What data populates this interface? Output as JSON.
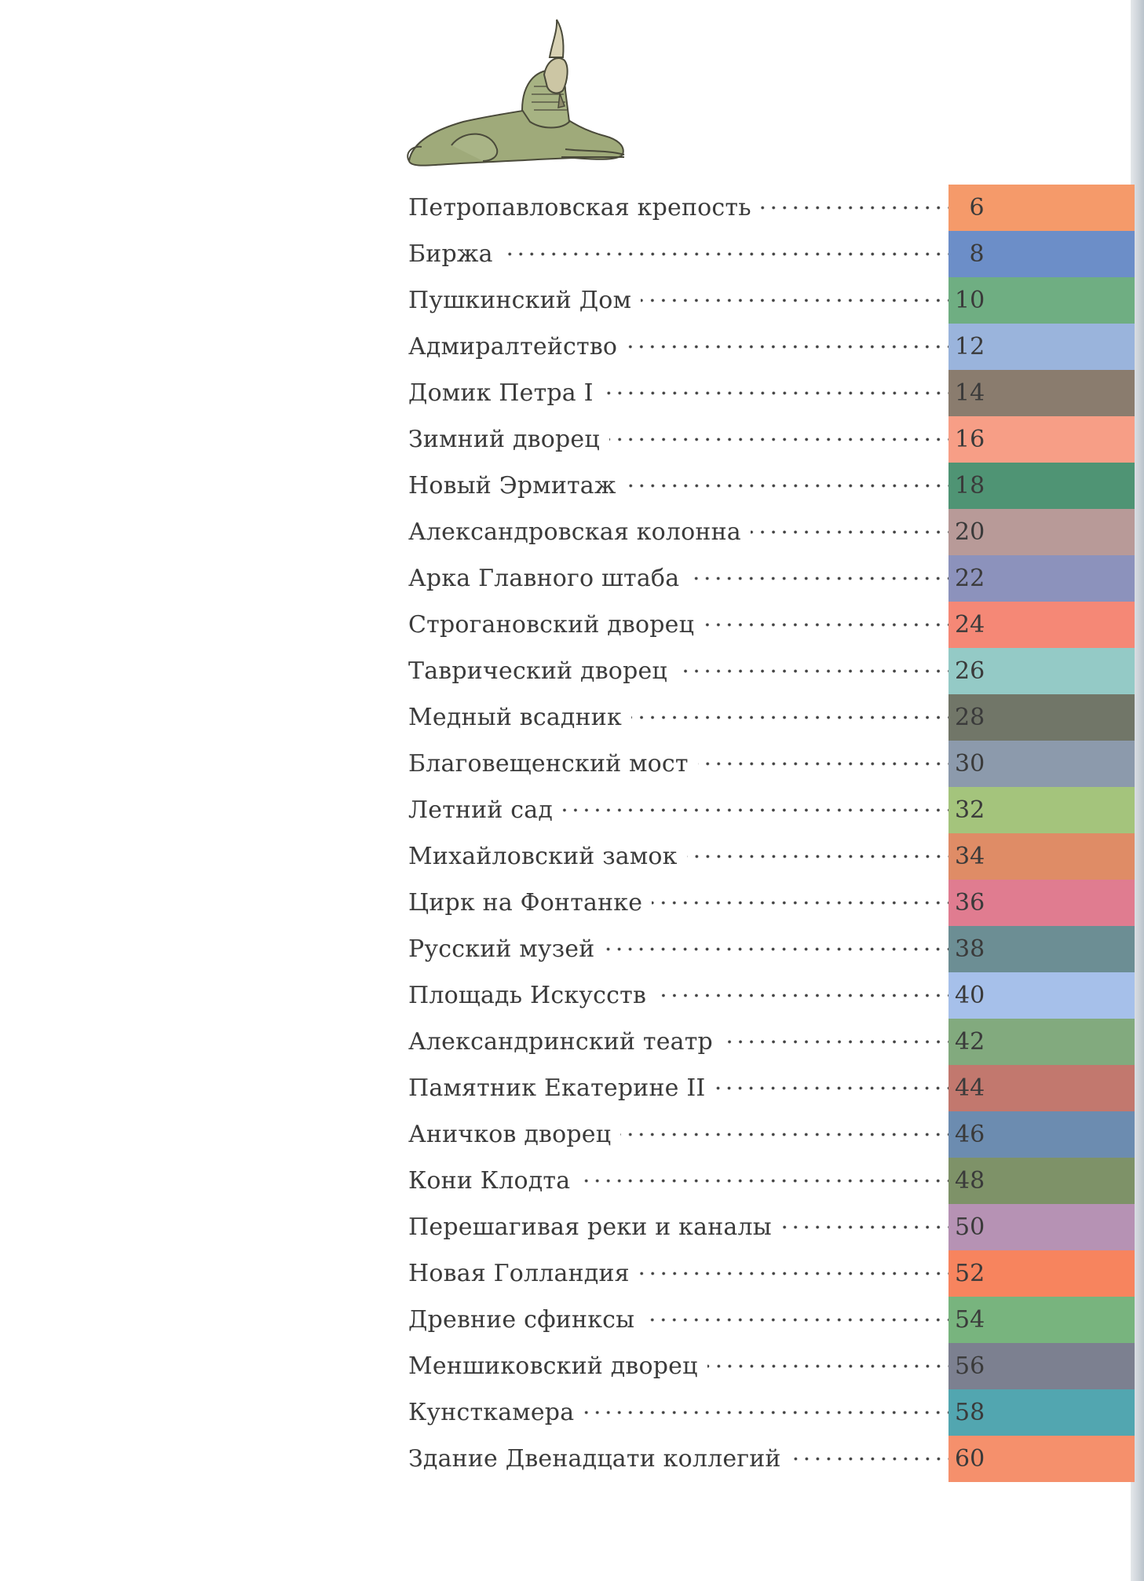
{
  "toc": [
    {
      "title": "Петропавловская крепость",
      "page": "6",
      "color": "#f59a6a"
    },
    {
      "title": "Биржа",
      "page": "8",
      "color": "#6c8ec8"
    },
    {
      "title": "Пушкинский Дом",
      "page": "10",
      "color": "#6fae82"
    },
    {
      "title": "Адмиралтейство",
      "page": "12",
      "color": "#9ab4dc"
    },
    {
      "title": "Домик Петра I",
      "page": "14",
      "color": "#8a7c6e"
    },
    {
      "title": "Зимний дворец",
      "page": "16",
      "color": "#f79e86"
    },
    {
      "title": "Новый Эрмитаж",
      "page": "18",
      "color": "#4f9474"
    },
    {
      "title": "Александровская колонна",
      "page": "20",
      "color": "#b89a98"
    },
    {
      "title": "Арка Главного штаба",
      "page": "22",
      "color": "#8c92bc"
    },
    {
      "title": "Строгановский дворец",
      "page": "24",
      "color": "#f58876"
    },
    {
      "title": "Таврический дворец",
      "page": "26",
      "color": "#94cac6"
    },
    {
      "title": "Медный всадник",
      "page": "28",
      "color": "#717668"
    },
    {
      "title": "Благовещенский мост",
      "page": "30",
      "color": "#8c9aac"
    },
    {
      "title": "Летний сад",
      "page": "32",
      "color": "#a4c47c"
    },
    {
      "title": "Михайловский замок",
      "page": "34",
      "color": "#df8c66"
    },
    {
      "title": "Цирк на Фонтанке",
      "page": "36",
      "color": "#e07c90"
    },
    {
      "title": "Русский музей",
      "page": "38",
      "color": "#6c8e94"
    },
    {
      "title": "Площадь Искусств",
      "page": "40",
      "color": "#a6c0ea"
    },
    {
      "title": "Александринский театр",
      "page": "42",
      "color": "#82aa7e"
    },
    {
      "title": "Памятник Екатерине II",
      "page": "44",
      "color": "#c2786e"
    },
    {
      "title": "Аничков дворец",
      "page": "46",
      "color": "#6c8cb0"
    },
    {
      "title": "Кони Клодта",
      "page": "48",
      "color": "#7e9268"
    },
    {
      "title": "Перешагивая реки и каналы",
      "page": "50",
      "color": "#b692b4"
    },
    {
      "title": "Новая Голландия",
      "page": "52",
      "color": "#f7845e"
    },
    {
      "title": "Древние сфинксы",
      "page": "54",
      "color": "#78b47e"
    },
    {
      "title": "Меншиковский дворец",
      "page": "56",
      "color": "#7c8090"
    },
    {
      "title": "Кунсткамера",
      "page": "58",
      "color": "#52a6b0"
    },
    {
      "title": "Здание Двенадцати коллегий",
      "page": "60",
      "color": "#f5906c"
    }
  ],
  "illustration": {
    "icon": "sphinx-icon"
  }
}
